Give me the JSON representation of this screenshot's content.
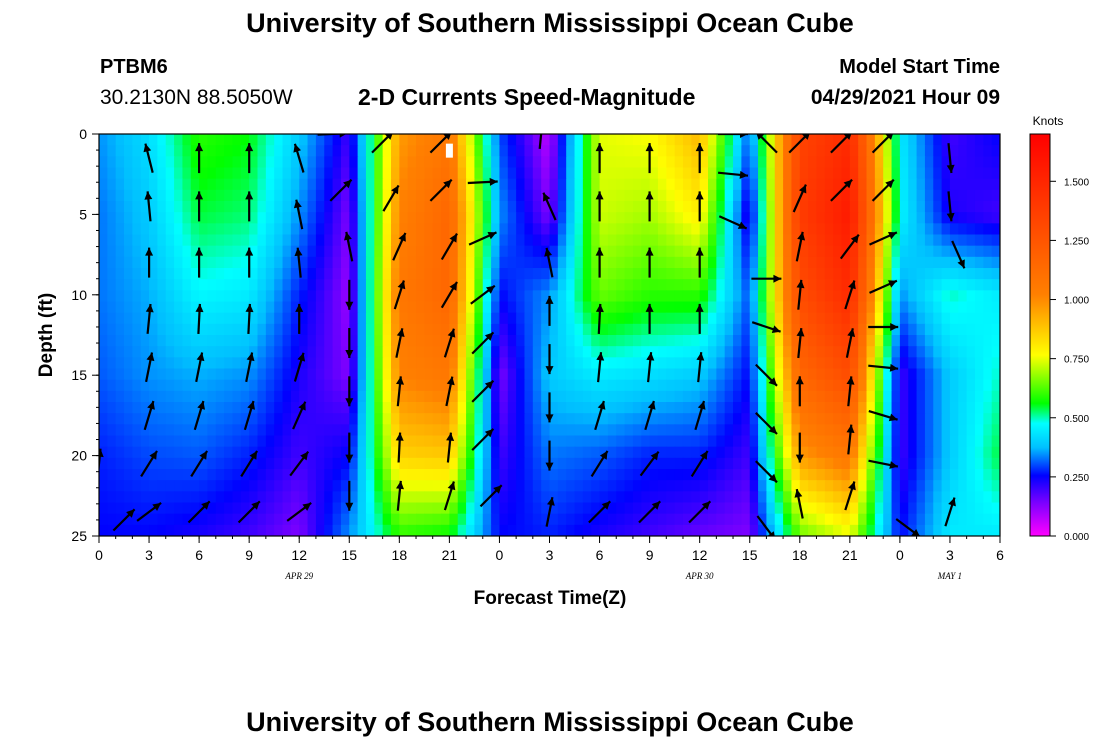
{
  "header": {
    "title_top": "University of Southern Mississippi Ocean Cube",
    "title_bottom": "University of Southern Mississippi Ocean Cube",
    "station_id": "PTBM6",
    "station_coords": "30.2130N  88.5050W",
    "plot_title": "2-D Currents Speed-Magnitude",
    "model_start_label": "Model Start Time",
    "model_start_value": "04/29/2021 Hour 09"
  },
  "chart_data": {
    "type": "heatmap",
    "title": "2-D Currents Speed-Magnitude",
    "xlabel": "Forecast Time(Z)",
    "ylabel": "Depth (ft)",
    "x_ticks": [
      "0",
      "3",
      "6",
      "9",
      "12",
      "15",
      "18",
      "21",
      "0",
      "3",
      "6",
      "9",
      "12",
      "15",
      "18",
      "21",
      "0",
      "3",
      "6"
    ],
    "date_labels": [
      {
        "text": "APR 29",
        "at_tick": 4
      },
      {
        "text": "APR 30",
        "at_tick": 12
      },
      {
        "text": "MAY 1",
        "at_tick": 17
      }
    ],
    "ylim": [
      0,
      25
    ],
    "y_ticks": [
      0,
      5,
      10,
      15,
      20,
      25
    ],
    "colorbar": {
      "label": "Knots",
      "range": [
        0,
        1.7
      ],
      "ticks": [
        "0.000",
        "0.250",
        "0.500",
        "0.750",
        "1.000",
        "1.250",
        "1.500"
      ],
      "tick_values": [
        0,
        0.25,
        0.5,
        0.75,
        1.0,
        1.25,
        1.5
      ]
    },
    "grid_x_hours": [
      0,
      3,
      6,
      9,
      12,
      15,
      18,
      21,
      24,
      27,
      30,
      33,
      36,
      39,
      42,
      45,
      48,
      51,
      54
    ],
    "grid_y_depths": [
      0,
      5,
      10,
      15,
      20,
      25
    ],
    "speed_knots": [
      [
        0.3,
        0.38,
        0.55,
        0.52,
        0.35,
        0.15,
        0.9,
        1.0,
        0.25,
        0.05,
        0.7,
        0.72,
        0.85,
        0.25,
        1.3,
        1.45,
        0.4,
        0.15,
        0.2
      ],
      [
        0.28,
        0.35,
        0.5,
        0.48,
        0.3,
        0.1,
        0.95,
        1.1,
        0.3,
        0.1,
        0.68,
        0.65,
        0.75,
        0.15,
        1.35,
        1.55,
        0.42,
        0.18,
        0.15
      ],
      [
        0.28,
        0.32,
        0.42,
        0.4,
        0.22,
        0.08,
        1.0,
        1.1,
        0.2,
        0.3,
        0.6,
        0.55,
        0.55,
        0.25,
        1.25,
        1.45,
        0.3,
        0.45,
        0.4
      ],
      [
        0.26,
        0.3,
        0.32,
        0.3,
        0.18,
        0.1,
        0.95,
        1.0,
        0.1,
        0.35,
        0.4,
        0.38,
        0.35,
        0.2,
        1.1,
        1.25,
        0.15,
        0.35,
        0.45
      ],
      [
        0.22,
        0.25,
        0.26,
        0.22,
        0.15,
        0.2,
        0.8,
        0.82,
        0.15,
        0.28,
        0.26,
        0.22,
        0.22,
        0.15,
        0.9,
        1.0,
        0.15,
        0.35,
        0.5
      ],
      [
        0.2,
        0.2,
        0.18,
        0.15,
        0.1,
        0.3,
        0.55,
        0.52,
        0.2,
        0.22,
        0.18,
        0.15,
        0.12,
        0.1,
        0.6,
        0.7,
        0.2,
        0.4,
        0.4
      ]
    ],
    "arrows": [
      {
        "hour": 0,
        "depth": 20.5,
        "u": 0.1,
        "v": 1
      },
      {
        "hour": 1.5,
        "depth": 24,
        "u": 0.7,
        "v": 0.7
      },
      {
        "hour": 3,
        "depth": 1.5,
        "u": -0.25,
        "v": 1
      },
      {
        "hour": 3,
        "depth": 4.5,
        "u": -0.1,
        "v": 1
      },
      {
        "hour": 3,
        "depth": 8,
        "u": 0,
        "v": 1
      },
      {
        "hour": 3,
        "depth": 11.5,
        "u": 0.1,
        "v": 1
      },
      {
        "hour": 3,
        "depth": 14.5,
        "u": 0.2,
        "v": 1
      },
      {
        "hour": 3,
        "depth": 17.5,
        "u": 0.3,
        "v": 1
      },
      {
        "hour": 3,
        "depth": 20.5,
        "u": 0.5,
        "v": 0.8
      },
      {
        "hour": 3,
        "depth": 23.5,
        "u": 0.8,
        "v": 0.6
      },
      {
        "hour": 6,
        "depth": 1.5,
        "u": 0,
        "v": 1
      },
      {
        "hour": 6,
        "depth": 4.5,
        "u": 0,
        "v": 1
      },
      {
        "hour": 6,
        "depth": 8,
        "u": 0,
        "v": 1
      },
      {
        "hour": 6,
        "depth": 11.5,
        "u": 0.05,
        "v": 1
      },
      {
        "hour": 6,
        "depth": 14.5,
        "u": 0.2,
        "v": 1
      },
      {
        "hour": 6,
        "depth": 17.5,
        "u": 0.3,
        "v": 1
      },
      {
        "hour": 6,
        "depth": 20.5,
        "u": 0.5,
        "v": 0.8
      },
      {
        "hour": 6,
        "depth": 23.5,
        "u": 0.7,
        "v": 0.7
      },
      {
        "hour": 9,
        "depth": 1.5,
        "u": 0,
        "v": 1
      },
      {
        "hour": 9,
        "depth": 4.5,
        "u": 0,
        "v": 1
      },
      {
        "hour": 9,
        "depth": 8,
        "u": 0,
        "v": 1
      },
      {
        "hour": 9,
        "depth": 11.5,
        "u": 0.05,
        "v": 1
      },
      {
        "hour": 9,
        "depth": 14.5,
        "u": 0.2,
        "v": 1
      },
      {
        "hour": 9,
        "depth": 17.5,
        "u": 0.3,
        "v": 1
      },
      {
        "hour": 9,
        "depth": 20.5,
        "u": 0.5,
        "v": 0.8
      },
      {
        "hour": 9,
        "depth": 23.5,
        "u": 0.7,
        "v": 0.7
      },
      {
        "hour": 12,
        "depth": 1.5,
        "u": -0.3,
        "v": 1
      },
      {
        "hour": 12,
        "depth": 5,
        "u": -0.2,
        "v": 1
      },
      {
        "hour": 12,
        "depth": 8,
        "u": -0.1,
        "v": 1
      },
      {
        "hour": 12,
        "depth": 11.5,
        "u": 0,
        "v": 1
      },
      {
        "hour": 12,
        "depth": 14.5,
        "u": 0.3,
        "v": 1
      },
      {
        "hour": 12,
        "depth": 17.5,
        "u": 0.4,
        "v": 0.9
      },
      {
        "hour": 12,
        "depth": 20.5,
        "u": 0.6,
        "v": 0.8
      },
      {
        "hour": 12,
        "depth": 23.5,
        "u": 0.8,
        "v": 0.6
      },
      {
        "hour": 14,
        "depth": 0,
        "u": 1,
        "v": 0.05
      },
      {
        "hour": 14.5,
        "depth": 3.5,
        "u": 0.7,
        "v": 0.7
      },
      {
        "hour": 15,
        "depth": 7,
        "u": -0.2,
        "v": 1
      },
      {
        "hour": 15,
        "depth": 10,
        "u": 0,
        "v": -1
      },
      {
        "hour": 15,
        "depth": 13,
        "u": 0,
        "v": -1
      },
      {
        "hour": 15,
        "depth": 16,
        "u": 0,
        "v": -1
      },
      {
        "hour": 15,
        "depth": 19.5,
        "u": 0,
        "v": -1
      },
      {
        "hour": 15,
        "depth": 22.5,
        "u": 0,
        "v": -1
      },
      {
        "hour": 17,
        "depth": 0.5,
        "u": 0.7,
        "v": 0.7
      },
      {
        "hour": 17.5,
        "depth": 4,
        "u": 0.5,
        "v": 0.85
      },
      {
        "hour": 18,
        "depth": 7,
        "u": 0.4,
        "v": 0.9
      },
      {
        "hour": 18,
        "depth": 10,
        "u": 0.3,
        "v": 0.95
      },
      {
        "hour": 18,
        "depth": 13,
        "u": 0.2,
        "v": 1
      },
      {
        "hour": 18,
        "depth": 16,
        "u": 0.1,
        "v": 1
      },
      {
        "hour": 18,
        "depth": 19.5,
        "u": 0.05,
        "v": 1
      },
      {
        "hour": 18,
        "depth": 22.5,
        "u": 0.1,
        "v": 1
      },
      {
        "hour": 20.5,
        "depth": 0.5,
        "u": 0.7,
        "v": 0.7
      },
      {
        "hour": 20.5,
        "depth": 3.5,
        "u": 0.7,
        "v": 0.7
      },
      {
        "hour": 21,
        "depth": 7,
        "u": 0.5,
        "v": 0.85
      },
      {
        "hour": 21,
        "depth": 10,
        "u": 0.5,
        "v": 0.85
      },
      {
        "hour": 21,
        "depth": 13,
        "u": 0.3,
        "v": 0.95
      },
      {
        "hour": 21,
        "depth": 16,
        "u": 0.2,
        "v": 1
      },
      {
        "hour": 21,
        "depth": 19.5,
        "u": 0.1,
        "v": 1
      },
      {
        "hour": 21,
        "depth": 22.5,
        "u": 0.3,
        "v": 0.95
      },
      {
        "hour": 23,
        "depth": 3,
        "u": 1,
        "v": 0.05
      },
      {
        "hour": 23,
        "depth": 6.5,
        "u": 0.9,
        "v": 0.4
      },
      {
        "hour": 23,
        "depth": 10,
        "u": 0.8,
        "v": 0.6
      },
      {
        "hour": 23,
        "depth": 13,
        "u": 0.7,
        "v": 0.7
      },
      {
        "hour": 23,
        "depth": 16,
        "u": 0.7,
        "v": 0.7
      },
      {
        "hour": 23,
        "depth": 19,
        "u": 0.7,
        "v": 0.7
      },
      {
        "hour": 23.5,
        "depth": 22.5,
        "u": 0.7,
        "v": 0.7
      },
      {
        "hour": 26.5,
        "depth": 0,
        "u": 0.1,
        "v": 1
      },
      {
        "hour": 27,
        "depth": 4.5,
        "u": -0.4,
        "v": 0.9
      },
      {
        "hour": 27,
        "depth": 8,
        "u": -0.2,
        "v": 1
      },
      {
        "hour": 27,
        "depth": 11,
        "u": 0,
        "v": 1
      },
      {
        "hour": 27,
        "depth": 14,
        "u": 0,
        "v": -1
      },
      {
        "hour": 27,
        "depth": 17,
        "u": 0,
        "v": -1
      },
      {
        "hour": 27,
        "depth": 20,
        "u": 0,
        "v": -1
      },
      {
        "hour": 27,
        "depth": 23.5,
        "u": 0.2,
        "v": 1
      },
      {
        "hour": 30,
        "depth": 1.5,
        "u": 0,
        "v": 1
      },
      {
        "hour": 30,
        "depth": 4.5,
        "u": 0,
        "v": 1
      },
      {
        "hour": 30,
        "depth": 8,
        "u": 0,
        "v": 1
      },
      {
        "hour": 30,
        "depth": 11.5,
        "u": 0.05,
        "v": 1
      },
      {
        "hour": 30,
        "depth": 14.5,
        "u": 0.1,
        "v": 1
      },
      {
        "hour": 30,
        "depth": 17.5,
        "u": 0.3,
        "v": 1
      },
      {
        "hour": 30,
        "depth": 20.5,
        "u": 0.5,
        "v": 0.8
      },
      {
        "hour": 30,
        "depth": 23.5,
        "u": 0.7,
        "v": 0.7
      },
      {
        "hour": 33,
        "depth": 1.5,
        "u": 0,
        "v": 1
      },
      {
        "hour": 33,
        "depth": 4.5,
        "u": 0,
        "v": 1
      },
      {
        "hour": 33,
        "depth": 8,
        "u": 0,
        "v": 1
      },
      {
        "hour": 33,
        "depth": 11.5,
        "u": 0,
        "v": 1
      },
      {
        "hour": 33,
        "depth": 14.5,
        "u": 0.1,
        "v": 1
      },
      {
        "hour": 33,
        "depth": 17.5,
        "u": 0.3,
        "v": 1
      },
      {
        "hour": 33,
        "depth": 20.5,
        "u": 0.6,
        "v": 0.8
      },
      {
        "hour": 33,
        "depth": 23.5,
        "u": 0.7,
        "v": 0.7
      },
      {
        "hour": 36,
        "depth": 1.5,
        "u": 0,
        "v": 1
      },
      {
        "hour": 36,
        "depth": 4.5,
        "u": 0,
        "v": 1
      },
      {
        "hour": 36,
        "depth": 8,
        "u": 0,
        "v": 1
      },
      {
        "hour": 36,
        "depth": 11.5,
        "u": 0,
        "v": 1
      },
      {
        "hour": 36,
        "depth": 14.5,
        "u": 0.1,
        "v": 1
      },
      {
        "hour": 36,
        "depth": 17.5,
        "u": 0.3,
        "v": 1
      },
      {
        "hour": 36,
        "depth": 20.5,
        "u": 0.5,
        "v": 0.8
      },
      {
        "hour": 36,
        "depth": 23.5,
        "u": 0.7,
        "v": 0.7
      },
      {
        "hour": 38,
        "depth": 0,
        "u": 1,
        "v": 0
      },
      {
        "hour": 38,
        "depth": 2.5,
        "u": 1,
        "v": -0.1
      },
      {
        "hour": 38,
        "depth": 5.5,
        "u": 0.9,
        "v": -0.4
      },
      {
        "hour": 40,
        "depth": 0.5,
        "u": -0.7,
        "v": 0.7
      },
      {
        "hour": 40,
        "depth": 9,
        "u": 1,
        "v": 0
      },
      {
        "hour": 40,
        "depth": 12,
        "u": 0.9,
        "v": -0.3
      },
      {
        "hour": 40,
        "depth": 15,
        "u": 0.7,
        "v": -0.7
      },
      {
        "hour": 40,
        "depth": 18,
        "u": 0.7,
        "v": -0.7
      },
      {
        "hour": 40,
        "depth": 21,
        "u": 0.7,
        "v": -0.7
      },
      {
        "hour": 40,
        "depth": 24.5,
        "u": 0.6,
        "v": -0.8
      },
      {
        "hour": 42,
        "depth": 0.5,
        "u": 0.7,
        "v": 0.7
      },
      {
        "hour": 42,
        "depth": 4,
        "u": 0.4,
        "v": 0.9
      },
      {
        "hour": 42,
        "depth": 7,
        "u": 0.2,
        "v": 1
      },
      {
        "hour": 42,
        "depth": 10,
        "u": 0.1,
        "v": 1
      },
      {
        "hour": 42,
        "depth": 13,
        "u": 0.1,
        "v": 1
      },
      {
        "hour": 42,
        "depth": 16,
        "u": 0,
        "v": 1
      },
      {
        "hour": 42,
        "depth": 19.5,
        "u": 0,
        "v": -1
      },
      {
        "hour": 42,
        "depth": 23,
        "u": -0.2,
        "v": 1
      },
      {
        "hour": 44.5,
        "depth": 0.5,
        "u": 0.7,
        "v": 0.7
      },
      {
        "hour": 44.5,
        "depth": 3.5,
        "u": 0.7,
        "v": 0.7
      },
      {
        "hour": 45,
        "depth": 7,
        "u": 0.6,
        "v": 0.8
      },
      {
        "hour": 45,
        "depth": 10,
        "u": 0.3,
        "v": 0.95
      },
      {
        "hour": 45,
        "depth": 13,
        "u": 0.2,
        "v": 1
      },
      {
        "hour": 45,
        "depth": 16,
        "u": 0.1,
        "v": 1
      },
      {
        "hour": 45,
        "depth": 19,
        "u": 0.1,
        "v": 1
      },
      {
        "hour": 45,
        "depth": 22.5,
        "u": 0.3,
        "v": 0.95
      },
      {
        "hour": 47,
        "depth": 0.5,
        "u": 0.7,
        "v": 0.7
      },
      {
        "hour": 47,
        "depth": 3.5,
        "u": 0.7,
        "v": 0.7
      },
      {
        "hour": 47,
        "depth": 6.5,
        "u": 0.9,
        "v": 0.4
      },
      {
        "hour": 47,
        "depth": 9.5,
        "u": 0.9,
        "v": 0.4
      },
      {
        "hour": 47,
        "depth": 12,
        "u": 1,
        "v": 0
      },
      {
        "hour": 47,
        "depth": 14.5,
        "u": 1,
        "v": -0.1
      },
      {
        "hour": 47,
        "depth": 17.5,
        "u": 1,
        "v": -0.3
      },
      {
        "hour": 47,
        "depth": 20.5,
        "u": 1,
        "v": -0.2
      },
      {
        "hour": 48.5,
        "depth": 24.5,
        "u": 0.8,
        "v": -0.6
      },
      {
        "hour": 51,
        "depth": 1.5,
        "u": 0.1,
        "v": -1
      },
      {
        "hour": 51,
        "depth": 4.5,
        "u": 0.1,
        "v": -1
      },
      {
        "hour": 51.5,
        "depth": 7.5,
        "u": 0.4,
        "v": -0.9
      },
      {
        "hour": 51,
        "depth": 23.5,
        "u": 0.3,
        "v": 0.95
      }
    ]
  }
}
